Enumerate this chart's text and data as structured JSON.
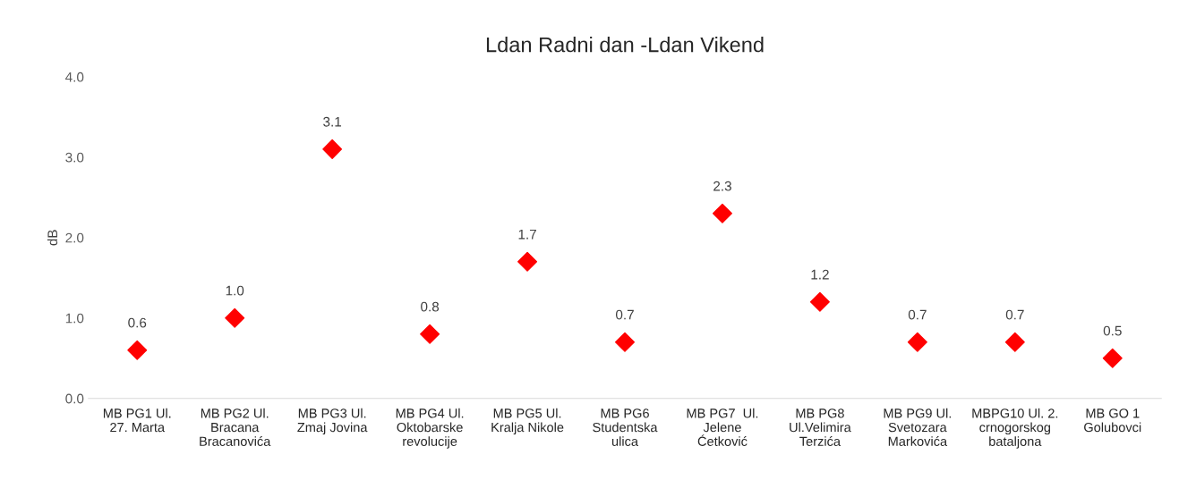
{
  "chart_data": {
    "type": "scatter",
    "title": "Ldan Radni dan -Ldan Vikend",
    "ylabel": "dB",
    "categories": [
      "MB PG1 Ul.\n27. Marta",
      "MB PG2 Ul.\nBracana\nBracanovića",
      "MB PG3 Ul.\nZmaj Jovina",
      "MB PG4 Ul.\nOktobarske\nrevolucije",
      "MB PG5 Ul.\nKralja Nikole",
      "MB PG6\nStudentska\nulica",
      "MB PG7  Ul.\nJelene\nĆetković",
      "MB PG8\nUl.Velimira\nTerzića",
      "MB PG9 Ul.\nSvetozara\nMarkovića",
      "MBPG10 Ul. 2.\ncrnogorskog\nbataljona",
      "MB GO 1\nGolubovci"
    ],
    "values": [
      0.6,
      1.0,
      3.1,
      0.8,
      1.7,
      0.7,
      2.3,
      1.2,
      0.7,
      0.7,
      0.5
    ],
    "value_labels": [
      "0.6",
      "1.0",
      "3.1",
      "0.8",
      "1.7",
      "0.7",
      "2.3",
      "1.2",
      "0.7",
      "0.7",
      "0.5"
    ],
    "color": "#ff0000",
    "marker": "diamond",
    "grid": false,
    "legend": false,
    "ylim": [
      0,
      4
    ],
    "yticks": [
      {
        "value": 0,
        "label": "0.0"
      },
      {
        "value": 1,
        "label": "1.0"
      },
      {
        "value": 2,
        "label": "2.0"
      },
      {
        "value": 3,
        "label": "3.0"
      },
      {
        "value": 4,
        "label": "4.0"
      }
    ]
  }
}
